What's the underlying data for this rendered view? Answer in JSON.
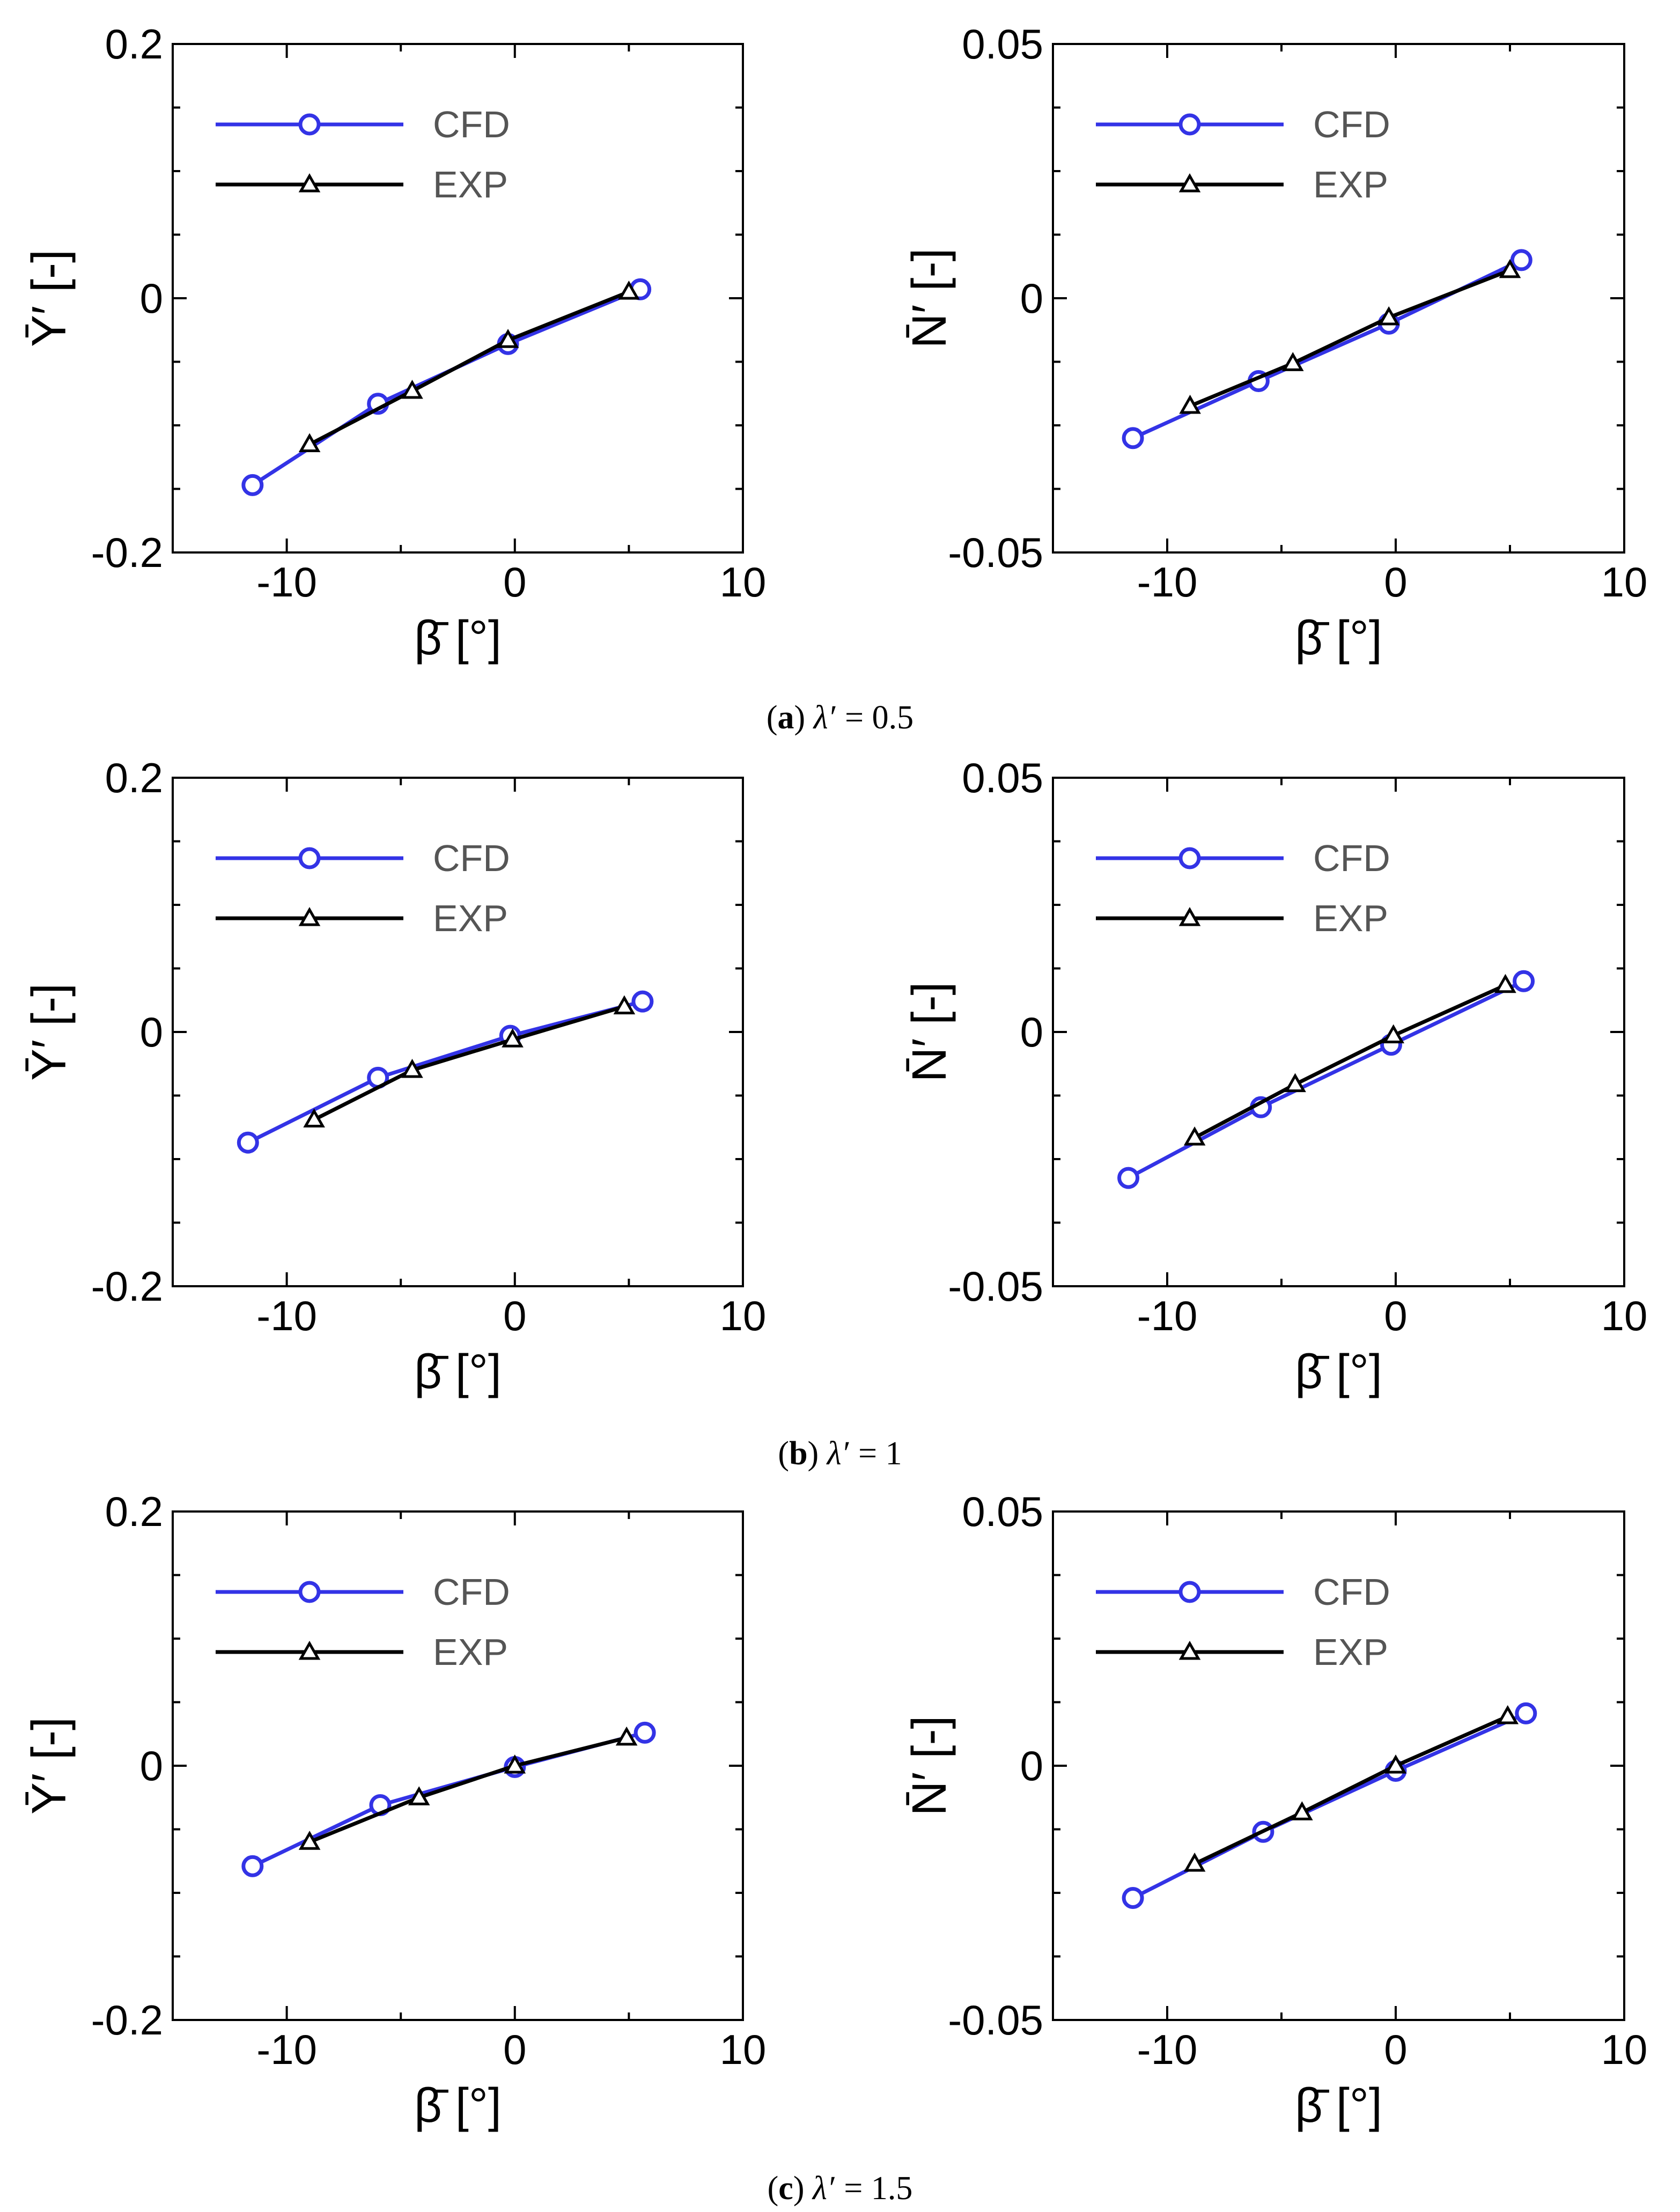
{
  "figure": {
    "captions": [
      {
        "tag": "a",
        "lambda": "λ′",
        "eq": "= 0.5"
      },
      {
        "tag": "b",
        "lambda": "λ′",
        "eq": "= 1"
      },
      {
        "tag": "c",
        "lambda": "λ′",
        "eq": "= 1.5"
      }
    ]
  },
  "colors": {
    "cfd": "#3333e6",
    "exp": "#000000",
    "axis": "#000000",
    "legend_text": "#555555"
  },
  "chart_data": [
    {
      "type": "line",
      "panel": "a-left",
      "xlabel": "β̄ [°]",
      "ylabel": "Ȳ′ [-]",
      "xlim": [
        -15,
        10
      ],
      "ylim": [
        -0.2,
        0.2
      ],
      "xticks": [
        -10,
        0,
        10
      ],
      "xtick_labels": [
        "-10",
        "0",
        "10"
      ],
      "yticks": [
        -0.2,
        0,
        0.2
      ],
      "ytick_labels": [
        "-0.2",
        "0",
        "0.2"
      ],
      "legend": [
        "CFD",
        "EXP"
      ],
      "series": [
        {
          "name": "CFD",
          "marker": "circle",
          "x": [
            -11.5,
            -6,
            -0.3,
            5.5
          ],
          "y": [
            -0.147,
            -0.083,
            -0.036,
            0.007
          ]
        },
        {
          "name": "EXP",
          "marker": "triangle",
          "x": [
            -9,
            -4.5,
            -0.3,
            5
          ],
          "y": [
            -0.115,
            -0.073,
            -0.033,
            0.005
          ]
        }
      ]
    },
    {
      "type": "line",
      "panel": "a-right",
      "xlabel": "β̄ [°]",
      "ylabel": "N̄′ [-]",
      "xlim": [
        -15,
        10
      ],
      "ylim": [
        -0.05,
        0.05
      ],
      "xticks": [
        -10,
        0,
        10
      ],
      "xtick_labels": [
        "-10",
        "0",
        "10"
      ],
      "yticks": [
        -0.05,
        0,
        0.05
      ],
      "ytick_labels": [
        "-0.05",
        "0",
        "0.05"
      ],
      "legend": [
        "CFD",
        "EXP"
      ],
      "series": [
        {
          "name": "CFD",
          "marker": "circle",
          "x": [
            -11.5,
            -6,
            -0.3,
            5.5
          ],
          "y": [
            -0.0275,
            -0.0163,
            -0.005,
            0.0075
          ]
        },
        {
          "name": "EXP",
          "marker": "triangle",
          "x": [
            -9,
            -4.5,
            -0.3,
            5
          ],
          "y": [
            -0.0212,
            -0.0128,
            -0.0038,
            0.0055
          ]
        }
      ]
    },
    {
      "type": "line",
      "panel": "b-left",
      "xlabel": "β̄ [°]",
      "ylabel": "Ȳ′ [-]",
      "xlim": [
        -15,
        10
      ],
      "ylim": [
        -0.2,
        0.2
      ],
      "xticks": [
        -10,
        0,
        10
      ],
      "xtick_labels": [
        "-10",
        "0",
        "10"
      ],
      "yticks": [
        -0.2,
        0,
        0.2
      ],
      "ytick_labels": [
        "-0.2",
        "0",
        "0.2"
      ],
      "legend": [
        "CFD",
        "EXP"
      ],
      "series": [
        {
          "name": "CFD",
          "marker": "circle",
          "x": [
            -11.7,
            -6,
            -0.2,
            5.6
          ],
          "y": [
            -0.087,
            -0.036,
            -0.003,
            0.024
          ]
        },
        {
          "name": "EXP",
          "marker": "triangle",
          "x": [
            -8.8,
            -4.5,
            -0.1,
            4.8
          ],
          "y": [
            -0.069,
            -0.03,
            -0.006,
            0.02
          ]
        }
      ]
    },
    {
      "type": "line",
      "panel": "b-right",
      "xlabel": "β̄ [°]",
      "ylabel": "N̄′ [-]",
      "xlim": [
        -15,
        10
      ],
      "ylim": [
        -0.05,
        0.05
      ],
      "xticks": [
        -10,
        0,
        10
      ],
      "xtick_labels": [
        "-10",
        "0",
        "10"
      ],
      "yticks": [
        -0.05,
        0,
        0.05
      ],
      "ytick_labels": [
        "-0.05",
        "0",
        "0.05"
      ],
      "legend": [
        "CFD",
        "EXP"
      ],
      "series": [
        {
          "name": "CFD",
          "marker": "circle",
          "x": [
            -11.7,
            -5.9,
            -0.2,
            5.6
          ],
          "y": [
            -0.0287,
            -0.0148,
            -0.0025,
            0.01
          ]
        },
        {
          "name": "EXP",
          "marker": "triangle",
          "x": [
            -8.8,
            -4.4,
            -0.1,
            4.8
          ],
          "y": [
            -0.0208,
            -0.0103,
            -0.0007,
            0.0092
          ]
        }
      ]
    },
    {
      "type": "line",
      "panel": "c-left",
      "xlabel": "β̄ [°]",
      "ylabel": "Ȳ′ [-]",
      "xlim": [
        -15,
        10
      ],
      "ylim": [
        -0.2,
        0.2
      ],
      "xticks": [
        -10,
        0,
        10
      ],
      "xtick_labels": [
        "-10",
        "0",
        "10"
      ],
      "yticks": [
        -0.2,
        0,
        0.2
      ],
      "ytick_labels": [
        "-0.2",
        "0",
        "0.2"
      ],
      "legend": [
        "CFD",
        "EXP"
      ],
      "series": [
        {
          "name": "CFD",
          "marker": "circle",
          "x": [
            -11.5,
            -5.9,
            0,
            5.7
          ],
          "y": [
            -0.079,
            -0.031,
            -0.001,
            0.026
          ]
        },
        {
          "name": "EXP",
          "marker": "triangle",
          "x": [
            -9,
            -4.2,
            0,
            4.9
          ],
          "y": [
            -0.06,
            -0.025,
            0,
            0.022
          ]
        }
      ]
    },
    {
      "type": "line",
      "panel": "c-right",
      "xlabel": "β̄ [°]",
      "ylabel": "N̄′ [-]",
      "xlim": [
        -15,
        10
      ],
      "ylim": [
        -0.05,
        0.05
      ],
      "xticks": [
        -10,
        0,
        10
      ],
      "xtick_labels": [
        "-10",
        "0",
        "10"
      ],
      "yticks": [
        -0.05,
        0,
        0.05
      ],
      "ytick_labels": [
        "-0.05",
        "0",
        "0.05"
      ],
      "legend": [
        "CFD",
        "EXP"
      ],
      "series": [
        {
          "name": "CFD",
          "marker": "circle",
          "x": [
            -11.5,
            -5.8,
            0,
            5.7
          ],
          "y": [
            -0.026,
            -0.013,
            -0.001,
            0.0103
          ]
        },
        {
          "name": "EXP",
          "marker": "triangle",
          "x": [
            -8.8,
            -4.1,
            0,
            4.9
          ],
          "y": [
            -0.0193,
            -0.0092,
            0,
            0.0097
          ]
        }
      ]
    }
  ]
}
